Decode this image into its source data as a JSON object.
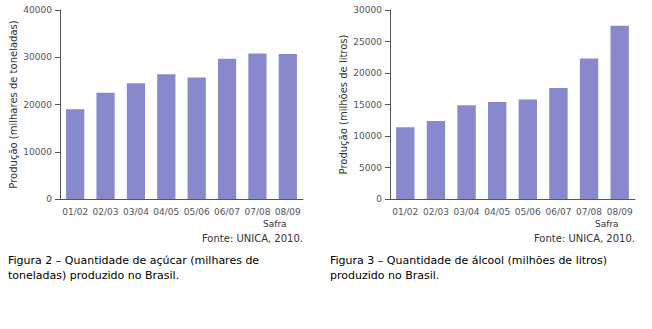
{
  "chart_data": [
    {
      "type": "bar",
      "categories": [
        "01/02",
        "02/03",
        "03/04",
        "04/05",
        "05/06",
        "06/07",
        "07/08",
        "08/09"
      ],
      "values": [
        19000,
        22500,
        24500,
        26400,
        25700,
        29700,
        30800,
        30700
      ],
      "color": "#8888cc",
      "ylabel": "Produção (milhares de toneladas)",
      "xlabel": "Safra",
      "ylim": [
        0,
        40000
      ],
      "yticks": [
        0,
        10000,
        20000,
        30000,
        40000
      ],
      "grid": false,
      "annotations": [
        "Fonte: UNICA, 2010.",
        "Figura 2 – Quantidade de açúcar (milhares de toneladas) produzido no Brasil."
      ]
    },
    {
      "type": "bar",
      "categories": [
        "01/02",
        "02/03",
        "03/04",
        "04/05",
        "05/06",
        "06/07",
        "07/08",
        "08/09"
      ],
      "values": [
        11400,
        12400,
        14900,
        15400,
        15800,
        17600,
        22300,
        27500
      ],
      "color": "#8888cc",
      "ylabel": "Produção (milhões de litros)",
      "xlabel": "Safra",
      "ylim": [
        0,
        30000
      ],
      "yticks": [
        0,
        5000,
        10000,
        15000,
        20000,
        25000,
        30000
      ],
      "grid": false,
      "annotations": [
        "Fonte: UNICA, 2010.",
        "Figura 3 – Quantidade de álcool (milhões de litros) produzido no Brasil."
      ]
    }
  ]
}
